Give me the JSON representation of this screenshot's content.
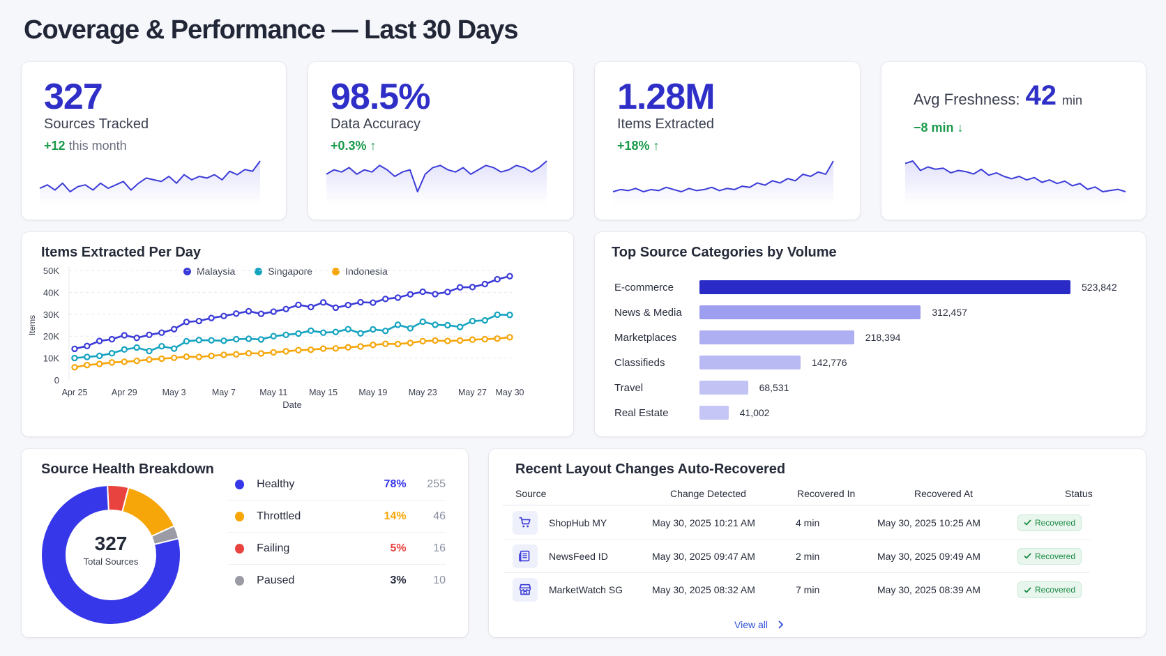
{
  "page": {
    "title": "Coverage & Performance — Last 30 Days"
  },
  "kpis": {
    "sources": {
      "value": "327",
      "label": "Sources Tracked",
      "delta": "+12",
      "delta_suffix": "this month",
      "spark": [
        14,
        16,
        13,
        17,
        12,
        15,
        16,
        13,
        17,
        14,
        16,
        18,
        13,
        17,
        20,
        19,
        18,
        21,
        17,
        22,
        19,
        21,
        20,
        22,
        19,
        24,
        22,
        25,
        24,
        30
      ]
    },
    "accuracy": {
      "value": "98.5%",
      "label": "Data Accuracy",
      "delta": "+0.3% ↑",
      "spark": [
        20,
        22,
        21,
        23,
        20,
        22,
        21,
        24,
        22,
        19,
        21,
        22,
        12,
        20,
        23,
        24,
        22,
        21,
        23,
        20,
        22,
        24,
        23,
        21,
        22,
        24,
        23,
        21,
        23,
        26
      ]
    },
    "items": {
      "value": "1.28M",
      "label": "Items Extracted",
      "delta": "+18% ↑",
      "spark": [
        10,
        12,
        11,
        13,
        10,
        12,
        11,
        14,
        12,
        10,
        13,
        11,
        12,
        14,
        11,
        13,
        12,
        15,
        14,
        18,
        16,
        20,
        18,
        22,
        20,
        26,
        24,
        28,
        26,
        38
      ]
    },
    "freshness": {
      "label": "Avg Freshness:",
      "value": "42",
      "unit": "min",
      "delta": "−8 min ↓",
      "spark": [
        30,
        32,
        24,
        27,
        25,
        26,
        22,
        24,
        23,
        21,
        25,
        20,
        22,
        19,
        17,
        19,
        16,
        18,
        14,
        16,
        13,
        15,
        11,
        13,
        8,
        10,
        6,
        7,
        8,
        6
      ]
    }
  },
  "colors": {
    "accent": "#2f2fc8",
    "malaysia": "#3b3bd8",
    "singapore": "#14a3bf",
    "indonesia": "#f6a609",
    "green": "#1a9a4a"
  },
  "line_card": {
    "title": "Items Extracted Per Day"
  },
  "bar_card": {
    "title": "Top Source Categories by Volume"
  },
  "chart_data": [
    {
      "type": "line",
      "title": "Items Extracted Per Day",
      "xlabel": "Date",
      "ylabel": "Items",
      "ylim": [
        0,
        50000
      ],
      "yticks": [
        "0",
        "10K",
        "20K",
        "30K",
        "40K",
        "50K"
      ],
      "xtick_labels": [
        "Apr 25",
        "Apr 29",
        "May 3",
        "May 7",
        "May 11",
        "May 15",
        "May 19",
        "May 23",
        "May 27",
        "May 30"
      ],
      "x": [
        "Apr 25",
        "Apr 26",
        "Apr 27",
        "Apr 28",
        "Apr 29",
        "Apr 30",
        "May 1",
        "May 2",
        "May 3",
        "May 4",
        "May 5",
        "May 6",
        "May 7",
        "May 8",
        "May 9",
        "May 10",
        "May 11",
        "May 12",
        "May 13",
        "May 14",
        "May 15",
        "May 16",
        "May 17",
        "May 18",
        "May 19",
        "May 20",
        "May 21",
        "May 22",
        "May 23",
        "May 24",
        "May 25",
        "May 26",
        "May 27",
        "May 28",
        "May 29",
        "May 30"
      ],
      "legend": "top",
      "grid": true,
      "series": [
        {
          "name": "Malaysia",
          "color": "#3b3bd8",
          "values": [
            14200,
            15500,
            17800,
            18600,
            20400,
            19200,
            20600,
            21600,
            23200,
            26500,
            26900,
            28300,
            29200,
            30300,
            31400,
            30200,
            31200,
            32400,
            34300,
            33300,
            35400,
            33000,
            34200,
            35500,
            35300,
            37000,
            37600,
            39100,
            40300,
            39200,
            40200,
            42300,
            42400,
            43800,
            46000,
            47400
          ]
        },
        {
          "name": "Singapore",
          "color": "#14a3bf",
          "values": [
            10000,
            10500,
            11000,
            12200,
            13900,
            14800,
            13200,
            15400,
            14300,
            17700,
            18200,
            18100,
            17900,
            18600,
            18800,
            18500,
            20000,
            20600,
            21200,
            22500,
            21600,
            21900,
            23200,
            21300,
            23100,
            22400,
            25200,
            23600,
            26600,
            25200,
            25000,
            24200,
            26900,
            27200,
            29800,
            29700
          ]
        },
        {
          "name": "Indonesia",
          "color": "#f6a609",
          "values": [
            5800,
            6800,
            7300,
            8000,
            8300,
            8700,
            9300,
            9700,
            10100,
            10600,
            10500,
            11000,
            11500,
            11700,
            12200,
            12100,
            12600,
            13100,
            13600,
            13800,
            14300,
            14400,
            14900,
            15300,
            16000,
            16500,
            16400,
            16900,
            17700,
            18000,
            17800,
            18000,
            18400,
            18600,
            18900,
            19500
          ]
        }
      ]
    },
    {
      "type": "bar",
      "title": "Top Source Categories by Volume",
      "orientation": "horizontal",
      "categories": [
        "E-commerce",
        "News & Media",
        "Marketplaces",
        "Classifieds",
        "Travel",
        "Real Estate"
      ],
      "values": [
        523842,
        312457,
        218394,
        142776,
        68531,
        41002
      ],
      "value_labels": [
        "523,842",
        "312,457",
        "218,394",
        "142,776",
        "68,531",
        "41,002"
      ],
      "colors": [
        "#2a2ac6",
        "#9e9ef0",
        "#aeaef2",
        "#b9b9f4",
        "#c2c2f5",
        "#c6c6f6"
      ]
    },
    {
      "type": "pie",
      "title": "Source Health Breakdown",
      "donut": true,
      "center_value": "327",
      "center_label": "Total Sources",
      "categories": [
        "Healthy",
        "Throttled",
        "Failing",
        "Paused"
      ],
      "percent_labels": [
        "78%",
        "14%",
        "5%",
        "3%"
      ],
      "values": [
        255,
        46,
        16,
        10
      ],
      "colors": [
        "#3737ea",
        "#f6a609",
        "#e8433e",
        "#9a9ba4"
      ],
      "pct_colors": [
        "#3737ea",
        "#f6a609",
        "#e8433e",
        "#262b3a"
      ]
    }
  ],
  "health_card": {
    "title": "Source Health Breakdown"
  },
  "table": {
    "title": "Recent Layout Changes Auto-Recovered",
    "headers": {
      "source": "Source",
      "detected": "Change Detected",
      "recovered_in": "Recovered In",
      "recovered_at": "Recovered At",
      "status": "Status"
    },
    "rows": [
      {
        "icon": "cart-icon",
        "source": "ShopHub MY",
        "detected": "May 30, 2025 10:21 AM",
        "recovered_in": "4 min",
        "recovered_at": "May 30, 2025 10:25 AM",
        "status": "Recovered"
      },
      {
        "icon": "newspaper-icon",
        "source": "NewsFeed ID",
        "detected": "May 30, 2025 09:47 AM",
        "recovered_in": "2 min",
        "recovered_at": "May 30, 2025 09:49 AM",
        "status": "Recovered"
      },
      {
        "icon": "storefront-icon",
        "source": "MarketWatch SG",
        "detected": "May 30, 2025 08:32 AM",
        "recovered_in": "7 min",
        "recovered_at": "May 30, 2025 08:39 AM",
        "status": "Recovered"
      }
    ],
    "view_all": "View all"
  }
}
